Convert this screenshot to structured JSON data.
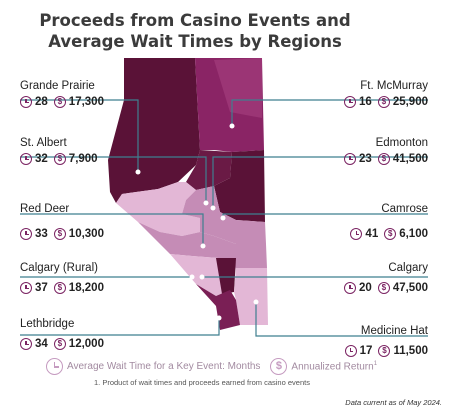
{
  "title_line1": "Proceeds from Casino Events and",
  "title_line2": "Average Wait Times by Regions",
  "regions": {
    "grande_prairie": {
      "name": "Grande Prairie",
      "wait": "28",
      "proceeds": "17,300"
    },
    "ft_mcmurray": {
      "name": "Ft. McMurray",
      "wait": "16",
      "proceeds": "25,900"
    },
    "st_albert": {
      "name": "St. Albert",
      "wait": "32",
      "proceeds": "7,900"
    },
    "edmonton": {
      "name": "Edmonton",
      "wait": "23",
      "proceeds": "41,500"
    },
    "red_deer": {
      "name": "Red Deer",
      "wait": "33",
      "proceeds": "10,300"
    },
    "camrose": {
      "name": "Camrose",
      "wait": "41",
      "proceeds": "6,100"
    },
    "calgary_rural": {
      "name": "Calgary (Rural)",
      "wait": "37",
      "proceeds": "18,200"
    },
    "calgary": {
      "name": "Calgary",
      "wait": "20",
      "proceeds": "47,500"
    },
    "lethbridge": {
      "name": "Lethbridge",
      "wait": "34",
      "proceeds": "12,000"
    },
    "medicine_hat": {
      "name": "Medicine Hat",
      "wait": "17",
      "proceeds": "11,500"
    }
  },
  "legend": {
    "wait_label": "Average Wait Time for a Key Event: Months",
    "proceeds_label": "Annualized Return",
    "proceeds_sup": "1"
  },
  "footnote": "1.  Product of wait times and proceeds earned from casino events",
  "data_note": "Data current as of May 2024.",
  "colors": {
    "dark_plum": "#5a1237",
    "magenta": "#8a2465",
    "mid_pink": "#c58cb6",
    "light_pink": "#e3b7d6",
    "line_teal": "#3f7f8f"
  }
}
